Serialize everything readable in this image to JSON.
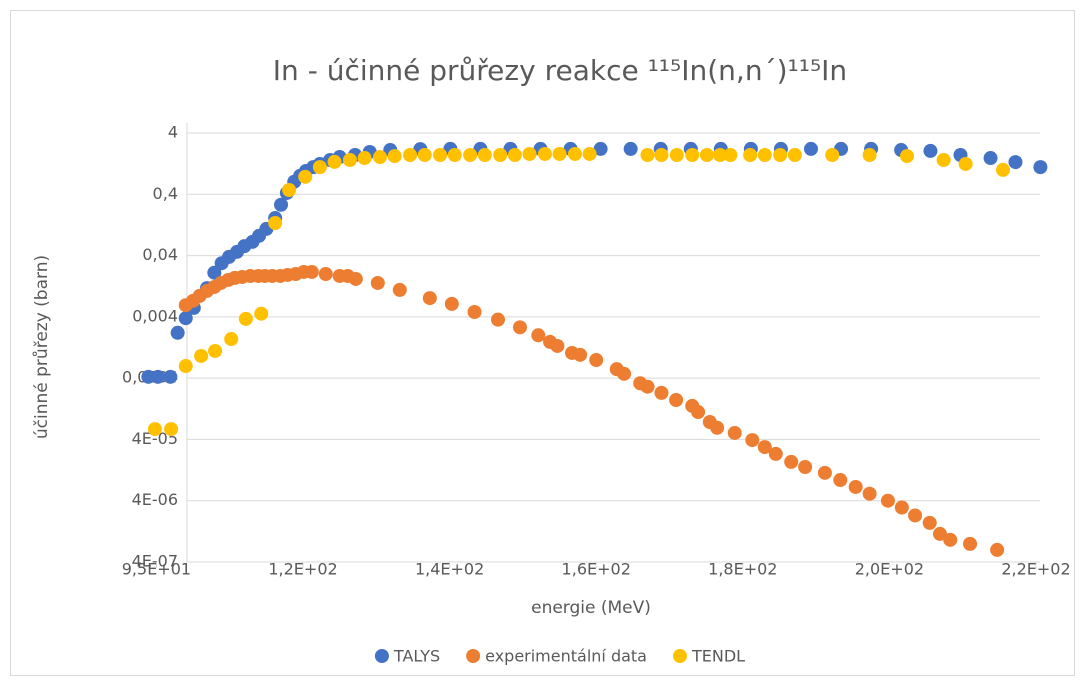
{
  "chart_data": {
    "type": "scatter",
    "title": "In - účinné průřezy reakce ¹¹⁵In(n,n´)¹¹⁵In",
    "x_label": "energie (MeV)",
    "y_label": "účinné průřezy (barn)",
    "log_y": true,
    "grid": true,
    "legend_position": "bottom",
    "xlim": [
      93.4,
      216.5
    ],
    "xticks": [
      {
        "value": 95,
        "label": "9,5E+01"
      },
      {
        "value": 115,
        "label": "1,2E+02"
      },
      {
        "value": 135,
        "label": "1,4E+02"
      },
      {
        "value": 155,
        "label": "1,6E+02"
      },
      {
        "value": 175,
        "label": "1,8E+02"
      },
      {
        "value": 195,
        "label": "2,0E+02"
      },
      {
        "value": 215,
        "label": "2,2E+02"
      }
    ],
    "ylim": [
      4e-07,
      4
    ],
    "yticks": [
      {
        "value": 4e-07,
        "label": "4E-07"
      },
      {
        "value": 4e-06,
        "label": "4E-06"
      },
      {
        "value": 4e-05,
        "label": "4E-05"
      },
      {
        "value": 0.0004,
        "label": "0,0004"
      },
      {
        "value": 0.004,
        "label": "0,004"
      },
      {
        "value": 0.04,
        "label": "0,04"
      },
      {
        "value": 0.4,
        "label": "0,4"
      },
      4
    ],
    "series": [
      {
        "name": "TALYS",
        "color": "#4472C4",
        "x": [
          93.9,
          95.2,
          96.9,
          97.9,
          99.0,
          100.1,
          101.9,
          102.9,
          103.9,
          104.9,
          106.0,
          107.0,
          108.1,
          109.0,
          110.0,
          111.2,
          112.0,
          112.8,
          113.8,
          114.6,
          115.4,
          116.4,
          117.3,
          118.7,
          120.0,
          122.1,
          124.1,
          126.9,
          131.0,
          135.1,
          139.2,
          143.3,
          147.4,
          151.5,
          155.6,
          159.7,
          163.8,
          167.9,
          172.0,
          176.1,
          180.2,
          184.3,
          188.4,
          192.5,
          196.6,
          200.6,
          204.7,
          208.8,
          212.2,
          215.6
        ],
        "values": [
          0.00042,
          0.00042,
          0.00042,
          0.0022,
          0.0038,
          0.0056,
          0.0118,
          0.021,
          0.03,
          0.038,
          0.046,
          0.057,
          0.067,
          0.084,
          0.109,
          0.164,
          0.27,
          0.42,
          0.64,
          0.8,
          0.96,
          1.11,
          1.25,
          1.45,
          1.62,
          1.75,
          1.96,
          2.11,
          2.18,
          2.2,
          2.2,
          2.2,
          2.2,
          2.2,
          2.2,
          2.2,
          2.2,
          2.2,
          2.2,
          2.2,
          2.2,
          2.2,
          2.2,
          2.2,
          2.11,
          2.04,
          1.75,
          1.56,
          1.34,
          1.11
        ]
      },
      {
        "name": "experimentální data",
        "color": "#ED7D31",
        "x": [
          99.0,
          100.0,
          100.9,
          101.9,
          102.9,
          103.8,
          104.8,
          105.7,
          106.7,
          107.8,
          108.9,
          109.8,
          110.8,
          111.9,
          112.9,
          114.0,
          115.1,
          116.2,
          118.1,
          120.0,
          121.1,
          122.2,
          125.2,
          128.2,
          132.3,
          135.3,
          138.4,
          141.6,
          144.6,
          147.1,
          148.7,
          149.7,
          151.7,
          152.8,
          155.0,
          157.8,
          158.8,
          161.0,
          162.0,
          163.9,
          165.9,
          168.1,
          168.9,
          170.5,
          171.5,
          173.9,
          176.3,
          178.0,
          179.5,
          181.6,
          183.5,
          186.2,
          188.3,
          190.4,
          192.3,
          194.8,
          196.7,
          198.5,
          200.5,
          201.9,
          203.3,
          206.0,
          209.7
        ],
        "values": [
          0.0062,
          0.0073,
          0.0088,
          0.0106,
          0.0123,
          0.0143,
          0.016,
          0.0173,
          0.0179,
          0.0186,
          0.0186,
          0.0186,
          0.0186,
          0.0186,
          0.0193,
          0.02,
          0.0216,
          0.0216,
          0.02,
          0.0186,
          0.0186,
          0.0166,
          0.0143,
          0.011,
          0.0081,
          0.0065,
          0.0048,
          0.0036,
          0.0027,
          0.002,
          0.00156,
          0.00134,
          0.00103,
          0.00096,
          0.00079,
          0.00056,
          0.00047,
          0.00033,
          0.00029,
          0.00023,
          0.000176,
          0.000141,
          0.000112,
          7.7e-05,
          6.2e-05,
          5.1e-05,
          3.9e-05,
          3e-05,
          2.32e-05,
          1.72e-05,
          1.42e-05,
          1.14e-05,
          8.7e-06,
          6.7e-06,
          5.2e-06,
          4e-06,
          3.1e-06,
          2.3e-06,
          1.74e-06,
          1.15e-06,
          9.2e-07,
          7.9e-07,
          6.3e-07
        ]
      },
      {
        "name": "TENDL",
        "color": "#FFC000",
        "x": [
          94.8,
          97.0,
          99.0,
          101.1,
          103.0,
          105.2,
          107.2,
          109.3,
          111.2,
          113.1,
          115.3,
          117.3,
          119.3,
          121.4,
          123.4,
          125.5,
          127.5,
          129.6,
          131.6,
          133.7,
          135.7,
          137.8,
          139.8,
          141.9,
          143.9,
          145.9,
          148.0,
          150.0,
          152.1,
          154.1,
          162.0,
          163.9,
          166.0,
          168.1,
          170.1,
          171.9,
          173.3,
          176.0,
          178.0,
          180.1,
          182.1,
          187.2,
          192.3,
          197.4,
          202.4,
          205.4,
          210.5
        ],
        "values": [
          5.9e-05,
          5.9e-05,
          0.00063,
          0.00092,
          0.00111,
          0.00174,
          0.0037,
          0.0045,
          0.136,
          0.47,
          0.77,
          1.11,
          1.35,
          1.45,
          1.56,
          1.62,
          1.68,
          1.75,
          1.75,
          1.75,
          1.75,
          1.75,
          1.75,
          1.75,
          1.75,
          1.82,
          1.82,
          1.82,
          1.82,
          1.82,
          1.75,
          1.75,
          1.75,
          1.75,
          1.75,
          1.75,
          1.75,
          1.75,
          1.75,
          1.75,
          1.75,
          1.75,
          1.75,
          1.68,
          1.45,
          1.25,
          1.0
        ]
      }
    ]
  }
}
